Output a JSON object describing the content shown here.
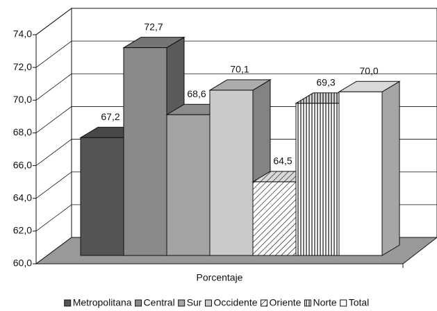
{
  "chart_data": {
    "type": "bar3d",
    "categories": [
      "Porcentaje"
    ],
    "series": [
      {
        "name": "Metropolitana",
        "color": "#555555",
        "values": [
          67.2
        ],
        "value_labels": [
          "67,2"
        ]
      },
      {
        "name": "Central",
        "color": "#8a8a8a",
        "values": [
          72.7
        ],
        "value_labels": [
          "72,7"
        ]
      },
      {
        "name": "Sur",
        "color": "#a4a4a4",
        "values": [
          68.6
        ],
        "value_labels": [
          "68,6"
        ]
      },
      {
        "name": "Occidente",
        "color": "#cacaca",
        "values": [
          70.1
        ],
        "value_labels": [
          "70,1"
        ]
      },
      {
        "name": "Oriente",
        "color": "#ffffff",
        "hatch": "diagonal",
        "values": [
          64.5
        ],
        "value_labels": [
          "64,5"
        ]
      },
      {
        "name": "Norte",
        "color": "#ffffff",
        "hatch": "vertical",
        "values": [
          69.3
        ],
        "value_labels": [
          "69,3"
        ]
      },
      {
        "name": "Total",
        "color": "#ffffff",
        "values": [
          70.0
        ],
        "value_labels": [
          "70,0"
        ]
      }
    ],
    "ylim": [
      60,
      74
    ],
    "yticks": [
      {
        "value": 60,
        "label": "60,0"
      },
      {
        "value": 62,
        "label": "62,0"
      },
      {
        "value": 64,
        "label": "64,0"
      },
      {
        "value": 66,
        "label": "66,0"
      },
      {
        "value": 68,
        "label": "68,0"
      },
      {
        "value": 70,
        "label": "70,0"
      },
      {
        "value": 72,
        "label": "72,0"
      },
      {
        "value": 74,
        "label": "74,0"
      }
    ],
    "grid": true,
    "legend": "bottom"
  }
}
